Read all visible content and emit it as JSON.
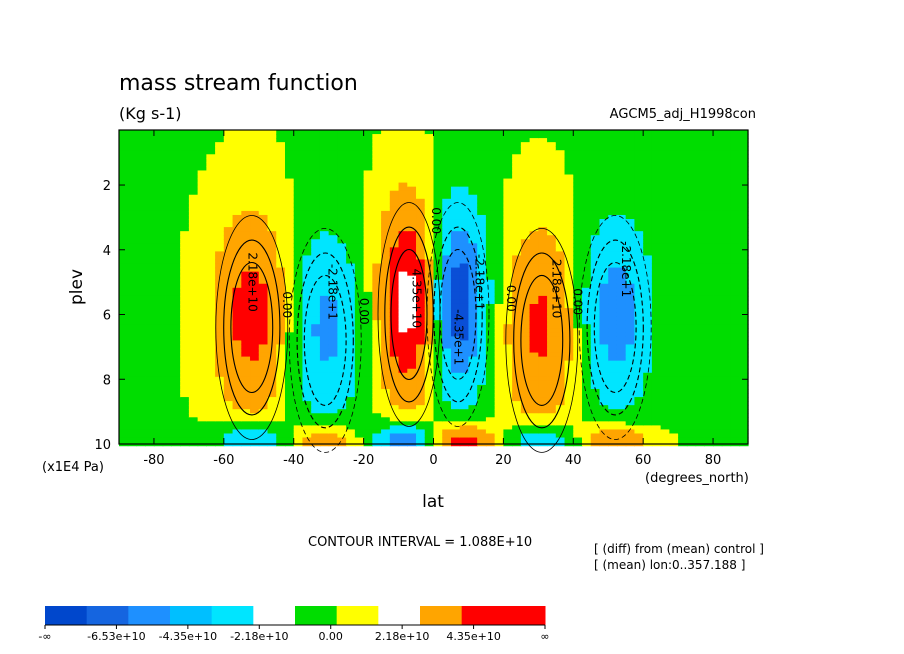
{
  "chart_data": {
    "type": "heatmap",
    "title": "mass stream function",
    "units": "(Kg s-1)",
    "experiment_label": "AGCM5_adj_H1998con",
    "xlabel": "lat",
    "xunits": "(degrees_north)",
    "ylabel": "plev",
    "yunits": "(x1E4 Pa)",
    "xlim": [
      -90,
      90
    ],
    "ylim": [
      10,
      0.3
    ],
    "x_ticks": [
      -80,
      -60,
      -40,
      -20,
      0,
      20,
      40,
      60,
      80
    ],
    "y_ticks": [
      2,
      4,
      6,
      8,
      10
    ],
    "contour_interval_text": "CONTOUR INTERVAL = 1.088E+10",
    "notes": [
      "[ (diff) from (mean) control ]",
      "[ (mean) lon:0..357.188 ]"
    ],
    "contour_labels": [
      {
        "text": "2.18e+10",
        "lat": -53,
        "plev": 5.0
      },
      {
        "text": "0.00",
        "lat": -43,
        "plev": 5.7
      },
      {
        "text": "-2.18e+1",
        "lat": -30,
        "plev": 5.3
      },
      {
        "text": "0.00",
        "lat": -21,
        "plev": 5.9
      },
      {
        "text": "4.35e+10",
        "lat": -6,
        "plev": 5.5
      },
      {
        "text": "0.00",
        "lat": -0.5,
        "plev": 3.1
      },
      {
        "text": "-4.35e+1",
        "lat": 6,
        "plev": 6.7
      },
      {
        "text": "-2.18e+1",
        "lat": 12,
        "plev": 5.0
      },
      {
        "text": "0.00",
        "lat": 21,
        "plev": 5.5
      },
      {
        "text": "2.18e+10",
        "lat": 34,
        "plev": 5.2
      },
      {
        "text": "0.00",
        "lat": 40,
        "plev": 5.6
      },
      {
        "text": "-2.18e+1",
        "lat": 54,
        "plev": 4.6
      }
    ],
    "cells": [
      {
        "lat": -52,
        "plev": 6.0,
        "value": 36000000000.0
      },
      {
        "lat": -31,
        "plev": 6.4,
        "value": -30000000000.0
      },
      {
        "lat": -7,
        "plev": 5.6,
        "value": 52000000000.0
      },
      {
        "lat": 7,
        "plev": 5.6,
        "value": -50000000000.0
      },
      {
        "lat": 31,
        "plev": 6.4,
        "value": 32000000000.0
      },
      {
        "lat": 52,
        "plev": 6.0,
        "value": -34000000000.0
      }
    ],
    "colorbar": {
      "labels": [
        "-∞",
        "-6.53e+10",
        "-4.35e+10",
        "-2.18e+10",
        "0.00",
        "2.18e+10",
        "4.35e+10",
        "∞"
      ],
      "colors": [
        "#0047cc",
        "#1565e0",
        "#1e90ff",
        "#00bfff",
        "#00e5ff",
        "#ffffff",
        "#00dd00",
        "#ffff00",
        "#ffffff",
        "#ffa500",
        "#ff0000",
        "#ff0000"
      ]
    },
    "palette": {
      "neg_strong": "#0a4fd6",
      "neg_mid": "#1e90ff",
      "neg_weak": "#00e5ff",
      "near_zero_neg": "#00dd00",
      "near_zero_pos": "#ffff00",
      "pos_weak": "#ffa500",
      "pos_strong": "#ff0000",
      "saturated": "#ffffff"
    }
  }
}
